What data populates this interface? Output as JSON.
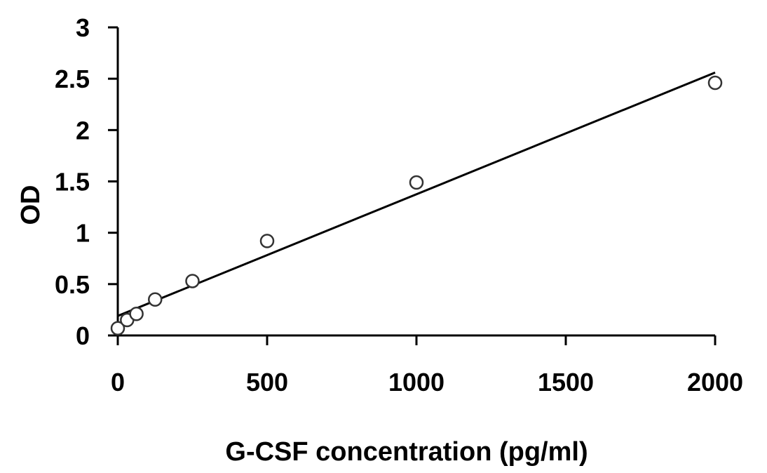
{
  "chart_data": {
    "type": "scatter",
    "title": "",
    "xlabel": "G-CSF concentration (pg/ml)",
    "ylabel": "OD",
    "xlim": [
      0,
      2000
    ],
    "ylim": [
      0,
      3
    ],
    "x_ticks": [
      0,
      500,
      1000,
      1500,
      2000
    ],
    "y_ticks": [
      0,
      0.5,
      1,
      1.5,
      2,
      2.5,
      3
    ],
    "x_tick_labels": [
      "0",
      "500",
      "1000",
      "1500",
      "2000"
    ],
    "y_tick_labels": [
      "0",
      "0.5",
      "1",
      "1.5",
      "2",
      "2.5",
      "3"
    ],
    "grid": false,
    "legend": "none",
    "series": [
      {
        "marker": "open-circle",
        "x": [
          0,
          31.25,
          62.5,
          125,
          250,
          500,
          1000,
          2000
        ],
        "y": [
          0.07,
          0.15,
          0.21,
          0.35,
          0.53,
          0.92,
          1.49,
          2.46
        ]
      }
    ],
    "trendline": {
      "type": "linear",
      "x": [
        0,
        2000
      ],
      "y": [
        0.19,
        2.56
      ]
    },
    "colors": {
      "axis": "#000000",
      "marker_stroke": "#333333",
      "marker_fill": "#ffffff",
      "trendline": "#000000"
    }
  }
}
